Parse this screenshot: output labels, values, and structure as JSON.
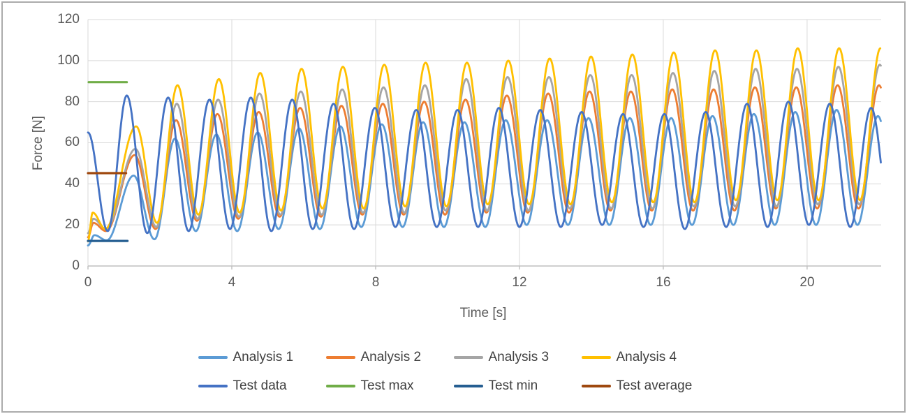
{
  "chart_data": {
    "type": "line",
    "title": "",
    "xlabel": "Time [s]",
    "ylabel": "Force [N]",
    "xlim": [
      0,
      22.06
    ],
    "ylim": [
      0,
      120
    ],
    "x_ticks": [
      0,
      4,
      8,
      12,
      16,
      20
    ],
    "y_ticks": [
      0,
      20,
      40,
      60,
      80,
      100,
      120
    ],
    "grid": "on",
    "legend_position": "bottom",
    "interpolation": "cosine-through-extrema",
    "style": {
      "grid_color": "#D9D9D9",
      "axis_color": "#BFBFBF",
      "tick_text_color": "#595959",
      "legend_text_color": "#404040",
      "frame_color": "#ABABAB",
      "background": "#FFFFFF"
    },
    "series": [
      {
        "name": "Analysis 1",
        "color": "#5B9BD5",
        "kind": "oscillatory",
        "points": [
          [
            0,
            10
          ],
          [
            0.18,
            15
          ],
          [
            0.52,
            12.5
          ],
          [
            1.27,
            44
          ],
          [
            1.85,
            13
          ],
          [
            2.42,
            62
          ],
          [
            3,
            17
          ],
          [
            3.57,
            64
          ],
          [
            4.15,
            17
          ],
          [
            4.72,
            65
          ],
          [
            5.3,
            18
          ],
          [
            5.87,
            67
          ],
          [
            6.45,
            18
          ],
          [
            7.02,
            68
          ],
          [
            7.6,
            19
          ],
          [
            8.17,
            69
          ],
          [
            8.75,
            19
          ],
          [
            9.32,
            70
          ],
          [
            9.9,
            19
          ],
          [
            10.47,
            70
          ],
          [
            11.05,
            19
          ],
          [
            11.62,
            71
          ],
          [
            12.2,
            20
          ],
          [
            12.77,
            71
          ],
          [
            13.35,
            20
          ],
          [
            13.92,
            72
          ],
          [
            14.5,
            20
          ],
          [
            15.07,
            72
          ],
          [
            15.65,
            20
          ],
          [
            16.22,
            72
          ],
          [
            16.8,
            20
          ],
          [
            17.37,
            73
          ],
          [
            17.95,
            20
          ],
          [
            18.52,
            74
          ],
          [
            19.1,
            20
          ],
          [
            19.67,
            75
          ],
          [
            20.25,
            20
          ],
          [
            20.82,
            76
          ],
          [
            21.4,
            20
          ],
          [
            21.97,
            73
          ],
          [
            22.55,
            20
          ]
        ]
      },
      {
        "name": "Analysis 2",
        "color": "#ED7D31",
        "kind": "oscillatory",
        "points": [
          [
            0,
            14
          ],
          [
            0.15,
            21
          ],
          [
            0.5,
            17
          ],
          [
            1.3,
            54
          ],
          [
            1.88,
            18
          ],
          [
            2.45,
            71
          ],
          [
            3.03,
            22
          ],
          [
            3.6,
            74
          ],
          [
            4.18,
            23
          ],
          [
            4.75,
            75
          ],
          [
            5.33,
            24
          ],
          [
            5.9,
            77
          ],
          [
            6.48,
            24
          ],
          [
            7.05,
            78
          ],
          [
            7.63,
            25
          ],
          [
            8.2,
            79
          ],
          [
            8.78,
            25
          ],
          [
            9.35,
            80
          ],
          [
            9.93,
            25
          ],
          [
            10.5,
            81
          ],
          [
            11.08,
            26
          ],
          [
            11.65,
            83
          ],
          [
            12.23,
            26
          ],
          [
            12.8,
            84
          ],
          [
            13.38,
            26
          ],
          [
            13.95,
            85
          ],
          [
            14.53,
            27
          ],
          [
            15.1,
            85
          ],
          [
            15.68,
            27
          ],
          [
            16.25,
            86
          ],
          [
            16.83,
            27
          ],
          [
            17.4,
            86
          ],
          [
            17.98,
            27
          ],
          [
            18.55,
            87
          ],
          [
            19.13,
            28
          ],
          [
            19.7,
            87
          ],
          [
            20.28,
            28
          ],
          [
            20.85,
            88
          ],
          [
            21.43,
            28
          ],
          [
            22,
            88
          ],
          [
            22.58,
            28
          ]
        ]
      },
      {
        "name": "Analysis 3",
        "color": "#A5A5A5",
        "kind": "oscillatory",
        "points": [
          [
            0,
            16
          ],
          [
            0.15,
            23
          ],
          [
            0.5,
            18
          ],
          [
            1.32,
            57
          ],
          [
            1.9,
            19
          ],
          [
            2.47,
            79
          ],
          [
            3.05,
            23
          ],
          [
            3.62,
            81
          ],
          [
            4.2,
            24
          ],
          [
            4.77,
            84
          ],
          [
            5.35,
            25
          ],
          [
            5.92,
            85
          ],
          [
            6.5,
            25
          ],
          [
            7.07,
            86
          ],
          [
            7.65,
            26
          ],
          [
            8.22,
            87
          ],
          [
            8.8,
            26
          ],
          [
            9.37,
            88
          ],
          [
            9.95,
            27
          ],
          [
            10.52,
            91
          ],
          [
            11.1,
            27
          ],
          [
            11.67,
            92
          ],
          [
            12.25,
            27
          ],
          [
            12.82,
            92
          ],
          [
            13.4,
            28
          ],
          [
            13.97,
            93
          ],
          [
            14.55,
            28
          ],
          [
            15.12,
            93
          ],
          [
            15.7,
            28
          ],
          [
            16.27,
            94
          ],
          [
            16.85,
            29
          ],
          [
            17.42,
            95
          ],
          [
            18,
            29
          ],
          [
            18.57,
            96
          ],
          [
            19.15,
            29
          ],
          [
            19.72,
            96
          ],
          [
            20.3,
            30
          ],
          [
            20.87,
            97
          ],
          [
            21.45,
            30
          ],
          [
            22.02,
            98
          ],
          [
            22.6,
            30
          ]
        ]
      },
      {
        "name": "Analysis 4",
        "color": "#FFC000",
        "kind": "oscillatory",
        "points": [
          [
            0,
            12
          ],
          [
            0.13,
            26
          ],
          [
            0.48,
            18
          ],
          [
            1.34,
            68
          ],
          [
            1.92,
            21
          ],
          [
            2.49,
            88
          ],
          [
            3.07,
            25
          ],
          [
            3.64,
            91
          ],
          [
            4.22,
            26
          ],
          [
            4.79,
            94
          ],
          [
            5.37,
            27
          ],
          [
            5.94,
            96
          ],
          [
            6.52,
            28
          ],
          [
            7.09,
            97
          ],
          [
            7.67,
            28
          ],
          [
            8.24,
            98
          ],
          [
            8.82,
            29
          ],
          [
            9.39,
            99
          ],
          [
            9.97,
            29
          ],
          [
            10.54,
            99
          ],
          [
            11.12,
            30
          ],
          [
            11.69,
            100
          ],
          [
            12.27,
            30
          ],
          [
            12.84,
            101
          ],
          [
            13.42,
            30
          ],
          [
            13.99,
            102
          ],
          [
            14.57,
            31
          ],
          [
            15.14,
            103
          ],
          [
            15.72,
            31
          ],
          [
            16.29,
            104
          ],
          [
            16.87,
            31
          ],
          [
            17.44,
            105
          ],
          [
            18.02,
            32
          ],
          [
            18.59,
            105
          ],
          [
            19.17,
            32
          ],
          [
            19.74,
            106
          ],
          [
            20.32,
            32
          ],
          [
            20.89,
            106
          ],
          [
            21.47,
            32
          ],
          [
            22.04,
            106
          ]
        ]
      },
      {
        "name": "Test data",
        "color": "#4472C4",
        "kind": "oscillatory",
        "points": [
          [
            0,
            65
          ],
          [
            0.55,
            17
          ],
          [
            1.08,
            83
          ],
          [
            1.65,
            16
          ],
          [
            2.23,
            82
          ],
          [
            2.8,
            17
          ],
          [
            3.38,
            81
          ],
          [
            3.95,
            18
          ],
          [
            4.53,
            82
          ],
          [
            5.1,
            17
          ],
          [
            5.68,
            81
          ],
          [
            6.25,
            18
          ],
          [
            6.83,
            79
          ],
          [
            7.4,
            18
          ],
          [
            7.98,
            77
          ],
          [
            8.55,
            19
          ],
          [
            9.13,
            76
          ],
          [
            9.7,
            19
          ],
          [
            10.28,
            76
          ],
          [
            10.85,
            19
          ],
          [
            11.43,
            77
          ],
          [
            12,
            19
          ],
          [
            12.58,
            76
          ],
          [
            13.15,
            19
          ],
          [
            13.73,
            75
          ],
          [
            14.3,
            20
          ],
          [
            14.88,
            74
          ],
          [
            15.45,
            19
          ],
          [
            16.03,
            74
          ],
          [
            16.6,
            18
          ],
          [
            17.18,
            75
          ],
          [
            17.75,
            19
          ],
          [
            18.33,
            79
          ],
          [
            18.9,
            19
          ],
          [
            19.48,
            80
          ],
          [
            20.05,
            20
          ],
          [
            20.63,
            79
          ],
          [
            21.2,
            19
          ],
          [
            21.78,
            77
          ],
          [
            22.35,
            19
          ]
        ]
      },
      {
        "name": "Test max",
        "color": "#70AD47",
        "kind": "reference-line",
        "value": 89.5,
        "points": [
          [
            0.02,
            89.5
          ],
          [
            1.08,
            89.5
          ]
        ]
      },
      {
        "name": "Test min",
        "color": "#255E91",
        "kind": "reference-line",
        "value": 12,
        "points": [
          [
            0,
            12.2
          ],
          [
            1.1,
            12.2
          ]
        ]
      },
      {
        "name": "Test average",
        "color": "#9E480E",
        "kind": "reference-line",
        "value": 45,
        "points": [
          [
            0,
            45.2
          ],
          [
            1.06,
            45.2
          ]
        ]
      }
    ]
  }
}
